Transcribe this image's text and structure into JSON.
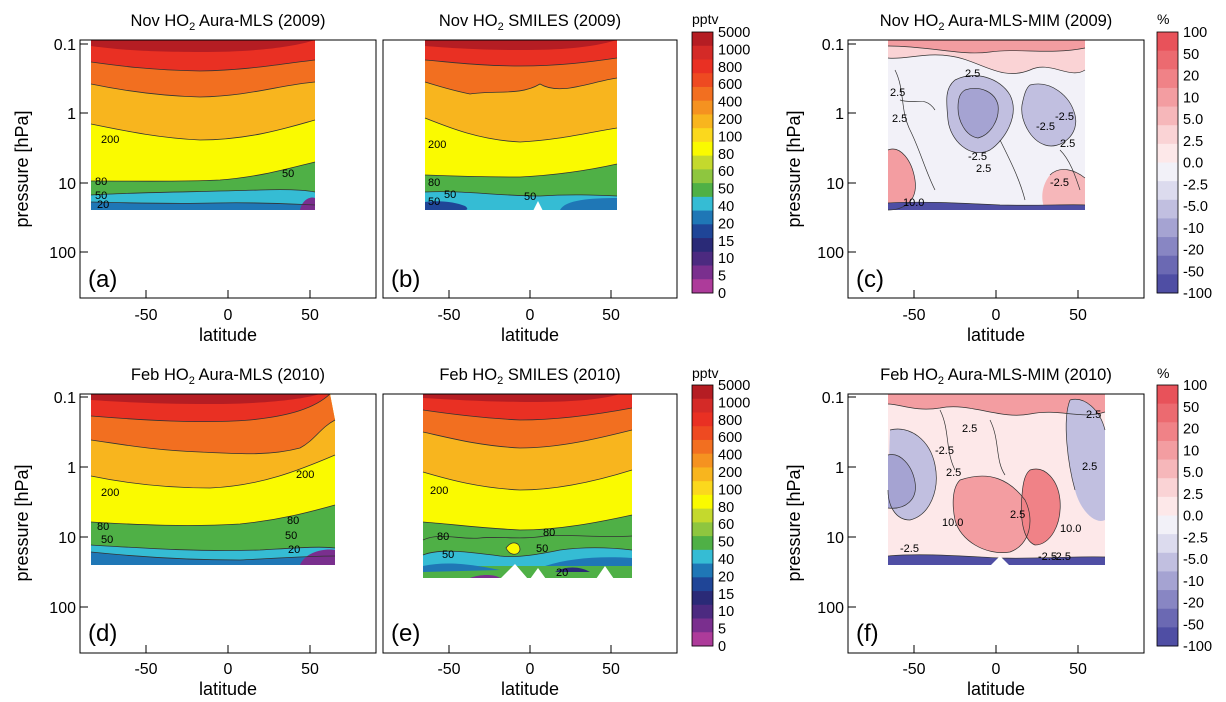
{
  "chart_data": [
    {
      "type": "contour",
      "panel": "(a)",
      "title": {
        "pre": "Nov HO",
        "sub": "2",
        "post": " Aura-MLS (2009)"
      },
      "xlabel": "latitude",
      "ylabel": "pressure [hPa]",
      "xticks": [
        "-50",
        "0",
        "50"
      ],
      "yticks": [
        "0.1",
        "1",
        "10",
        "100"
      ],
      "xlim": [
        -90,
        90
      ],
      "ylim_hPa": [
        0.1,
        300
      ],
      "y_scale": "log",
      "data_lat_range": [
        -85,
        62
      ],
      "data_pressure_range_hPa": [
        0.1,
        22
      ],
      "contour_labels": [
        "200",
        "80",
        "50",
        "20",
        "50"
      ]
    },
    {
      "type": "contour",
      "panel": "(b)",
      "title": {
        "pre": "Nov HO",
        "sub": "2",
        "post": " SMILES (2009)"
      },
      "xlabel": "latitude",
      "ylabel": "",
      "xticks": [
        "-50",
        "0",
        "50"
      ],
      "yticks": [],
      "xlim": [
        -90,
        90
      ],
      "ylim_hPa": [
        0.1,
        300
      ],
      "y_scale": "log",
      "data_lat_range": [
        -70,
        58
      ],
      "data_pressure_range_hPa": [
        0.1,
        22
      ],
      "contour_labels": [
        "200",
        "80",
        "50",
        "50",
        "50"
      ]
    },
    {
      "type": "contour",
      "panel": "(c)",
      "title": {
        "pre": "Nov HO",
        "sub": "2",
        "post": " Aura-MLS-MIM (2009)"
      },
      "xlabel": "latitude",
      "ylabel": "pressure [hPa]",
      "xticks": [
        "-50",
        "0",
        "50"
      ],
      "yticks": [
        "0.1",
        "1",
        "10",
        "100"
      ],
      "xlim": [
        -90,
        90
      ],
      "ylim_hPa": [
        0.1,
        300
      ],
      "y_scale": "log",
      "data_lat_range": [
        -68,
        58
      ],
      "data_pressure_range_hPa": [
        0.1,
        22
      ],
      "contour_labels": [
        "2.5",
        "2.5",
        "2.5",
        "-2.5",
        "2.5",
        "-2.5",
        "-2.5",
        "2.5",
        "-2.5",
        "10.0"
      ]
    },
    {
      "type": "contour",
      "panel": "(d)",
      "title": {
        "pre": "Feb HO",
        "sub": "2",
        "post": " Aura-MLS (2010)"
      },
      "xlabel": "latitude",
      "ylabel": "pressure [hPa]",
      "xticks": [
        "-50",
        "0",
        "50"
      ],
      "yticks": [
        "0.1",
        "1",
        "10",
        "100"
      ],
      "xlim": [
        -90,
        90
      ],
      "ylim_hPa": [
        0.1,
        300
      ],
      "y_scale": "log",
      "data_lat_range": [
        -85,
        72
      ],
      "data_pressure_range_hPa": [
        0.1,
        22
      ],
      "contour_labels": [
        "200",
        "200",
        "80",
        "80",
        "50",
        "50",
        "20"
      ]
    },
    {
      "type": "contour",
      "panel": "(e)",
      "title": {
        "pre": "Feb HO",
        "sub": "2",
        "post": " SMILES (2010)"
      },
      "xlabel": "latitude",
      "ylabel": "",
      "xticks": [
        "-50",
        "0",
        "50"
      ],
      "yticks": [],
      "xlim": [
        -90,
        90
      ],
      "ylim_hPa": [
        0.1,
        300
      ],
      "y_scale": "log",
      "data_lat_range": [
        -72,
        68
      ],
      "data_pressure_range_hPa": [
        0.1,
        32
      ],
      "contour_labels": [
        "200",
        "80",
        "50",
        "80",
        "50",
        "20"
      ]
    },
    {
      "type": "contour",
      "panel": "(f)",
      "title": {
        "pre": "Feb HO",
        "sub": "2",
        "post": " Aura-MLS-MIM (2010)"
      },
      "xlabel": "latitude",
      "ylabel": "pressure [hPa]",
      "xticks": [
        "-50",
        "0",
        "50"
      ],
      "yticks": [
        "0.1",
        "1",
        "10",
        "100"
      ],
      "xlim": [
        -90,
        90
      ],
      "ylim_hPa": [
        0.1,
        300
      ],
      "y_scale": "log",
      "data_lat_range": [
        -68,
        70
      ],
      "data_pressure_range_hPa": [
        0.1,
        22
      ],
      "contour_labels": [
        "2.5",
        "2.5",
        "-2.5",
        "2.5",
        "2.5",
        "10.0",
        "2.5",
        "10.0",
        "-2.5",
        "-2.5",
        "-2.5"
      ]
    }
  ],
  "colorbars": {
    "abs": {
      "unit": "pptv",
      "labels": [
        "5000",
        "1000",
        "800",
        "600",
        "400",
        "200",
        "100",
        "80",
        "60",
        "50",
        "40",
        "20",
        "15",
        "10",
        "5",
        "0"
      ],
      "colors": [
        "#b51d23",
        "#d42a27",
        "#e93023",
        "#ee4a21",
        "#f26f20",
        "#f59220",
        "#f8b51e",
        "#fbd81d",
        "#fafa00",
        "#c4d92d",
        "#8ec63f",
        "#4fb046",
        "#35bcd4",
        "#1f77b6",
        "#1f4597",
        "#2a2a77",
        "#4c2a80",
        "#7a2f8e",
        "#ad3b9a"
      ]
    },
    "rel": {
      "unit": "%",
      "labels": [
        "100",
        "50",
        "20",
        "10",
        "5.0",
        "2.5",
        "0.0",
        "-2.5",
        "-5.0",
        "-10",
        "-20",
        "-50",
        "-100"
      ],
      "colors": [
        "#e8525a",
        "#ec6a70",
        "#f08287",
        "#f39da1",
        "#f6b7ba",
        "#fad3d5",
        "#fde8e9",
        "#f2f1f8",
        "#dcdbee",
        "#c1bfe0",
        "#a5a3d2",
        "#8886c3",
        "#6b69b3",
        "#4f4ea4"
      ]
    }
  }
}
